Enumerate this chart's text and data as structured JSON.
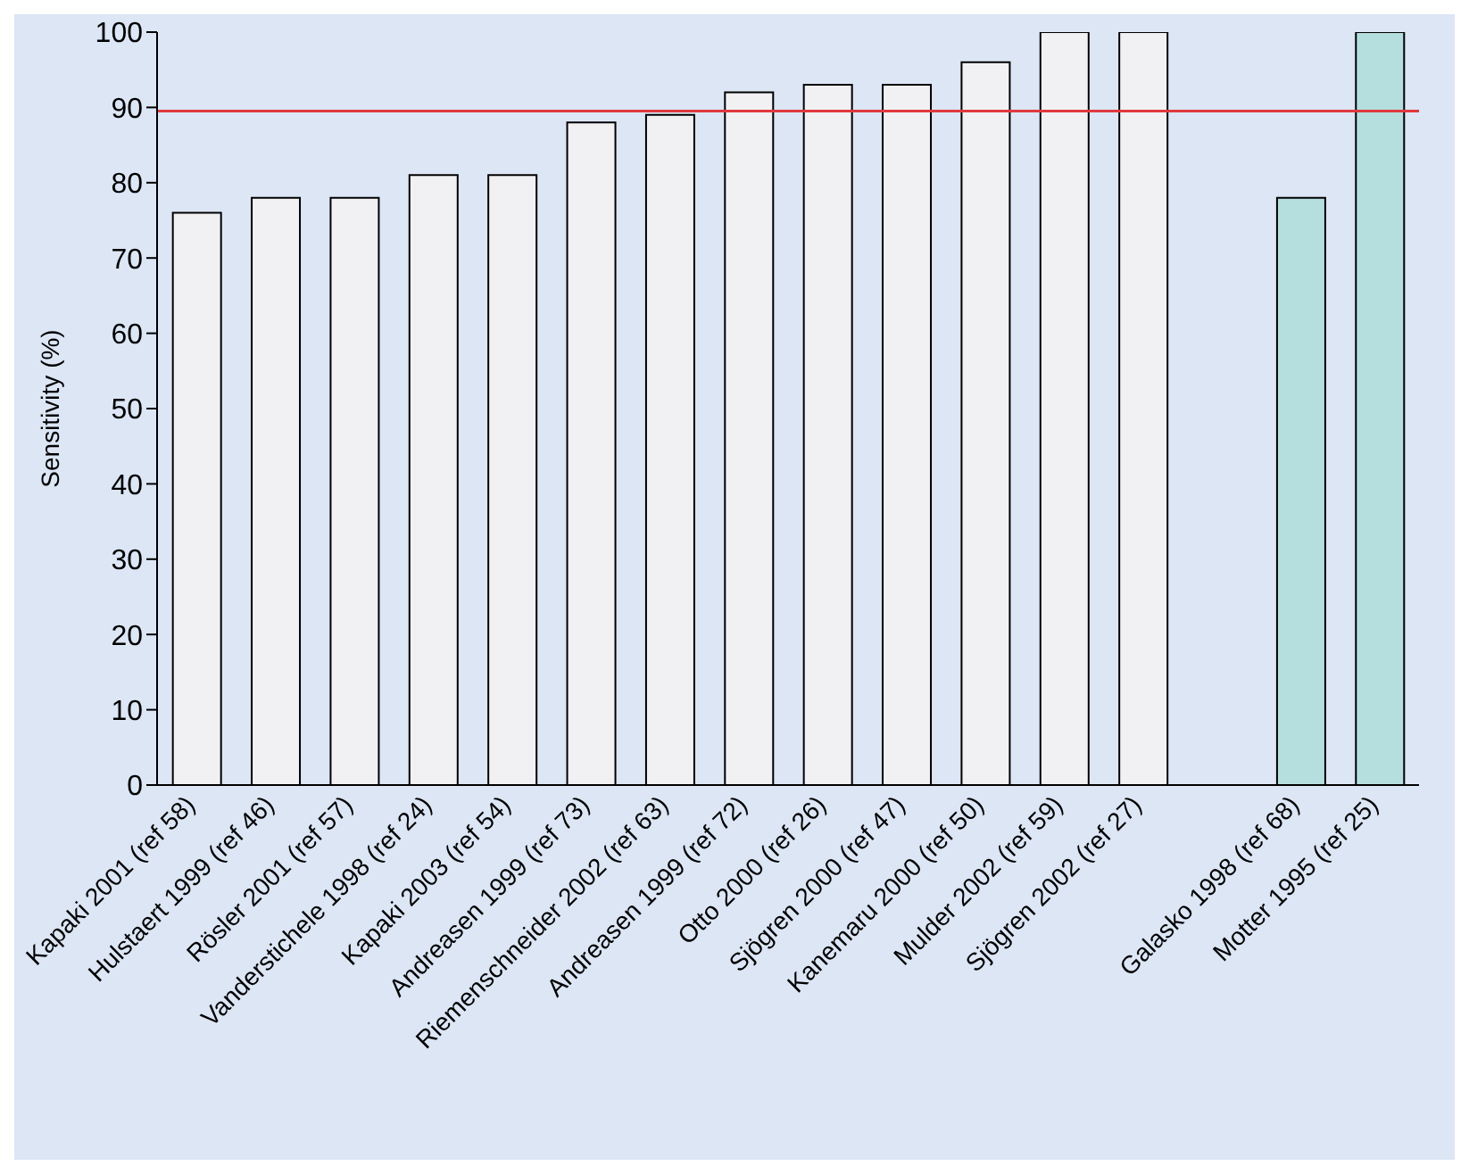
{
  "chart_data": {
    "type": "bar",
    "ylabel": "Sensitivity (%)",
    "categories": [
      "Kapaki 2001 (ref 58)",
      "Hulstaert 1999 (ref 46)",
      "Rösler 2001 (ref 57)",
      "Vanderstichele 1998 (ref 24)",
      "Kapaki  2003 (ref 54)",
      "Andreasen 1999 (ref 73)",
      "Riemenschneider 2002 (ref 63)",
      "Andreasen 1999 (ref 72)",
      "Otto 2000 (ref 26)",
      "Sjögren 2000 (ref 47)",
      "Kanemaru 2000 (ref 50)",
      "Mulder 2002 (ref 59)",
      "Sjögren 2002 (ref 27)",
      null,
      "Galasko 1998 (ref 68)",
      "Motter 1995 (ref 25)"
    ],
    "series": [
      {
        "color": "#f1f1f4",
        "values": [
          76,
          78,
          78,
          81,
          81,
          88,
          89,
          92,
          93,
          93,
          96,
          100,
          100,
          null,
          null,
          null
        ]
      },
      {
        "color": "#b5dedf",
        "values": [
          null,
          null,
          null,
          null,
          null,
          null,
          null,
          null,
          null,
          null,
          null,
          null,
          null,
          null,
          78,
          100
        ]
      }
    ],
    "stacked": true,
    "ylim": [
      0,
      100
    ],
    "yticks": [
      0,
      10,
      20,
      30,
      40,
      50,
      60,
      70,
      80,
      90,
      100
    ],
    "grid": false,
    "legend": false,
    "ref_lines": [
      {
        "axis": "y",
        "value": 89.5,
        "color": "#e0393e"
      }
    ]
  }
}
